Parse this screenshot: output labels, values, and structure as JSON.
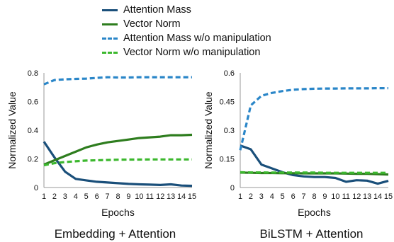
{
  "legend": [
    {
      "label": "Attention Mass",
      "color": "#1a4f7a",
      "dashed": false
    },
    {
      "label": "Vector Norm",
      "color": "#2e7d1e",
      "dashed": false
    },
    {
      "label": "Attention Mass w/o manipulation",
      "color": "#2a86c8",
      "dashed": true
    },
    {
      "label": "Vector Norm w/o manipulation",
      "color": "#3cb82e",
      "dashed": true
    }
  ],
  "chart_data": [
    {
      "type": "line",
      "title": "Embedding + Attention",
      "xlabel": "Epochs",
      "ylabel": "Normalized Value",
      "x": [
        1,
        2,
        3,
        4,
        5,
        6,
        7,
        8,
        9,
        10,
        11,
        12,
        13,
        14,
        15
      ],
      "xticks": [
        "1",
        "2",
        "3",
        "4",
        "5",
        "6",
        "7",
        "8",
        "9",
        "10",
        "11",
        "12",
        "13",
        "14",
        "15"
      ],
      "ylim": [
        0,
        0.8
      ],
      "yticks": [
        0,
        0.2,
        0.4,
        0.6,
        0.8
      ],
      "ytick_labels": [
        "0",
        "0.2",
        "0.4",
        "0.6",
        "0.8"
      ],
      "grid": false,
      "series": [
        {
          "name": "Attention Mass",
          "color": "#1a4f7a",
          "dashed": false,
          "values": [
            0.32,
            0.21,
            0.11,
            0.06,
            0.05,
            0.04,
            0.035,
            0.03,
            0.025,
            0.022,
            0.02,
            0.018,
            0.022,
            0.014,
            0.012
          ]
        },
        {
          "name": "Vector Norm",
          "color": "#2e7d1e",
          "dashed": false,
          "values": [
            0.16,
            0.19,
            0.22,
            0.25,
            0.28,
            0.3,
            0.315,
            0.325,
            0.335,
            0.345,
            0.35,
            0.355,
            0.365,
            0.365,
            0.368
          ]
        },
        {
          "name": "Attention Mass w/o manipulation",
          "color": "#2a86c8",
          "dashed": true,
          "values": [
            0.72,
            0.75,
            0.755,
            0.758,
            0.76,
            0.765,
            0.77,
            0.768,
            0.768,
            0.77,
            0.77,
            0.77,
            0.77,
            0.77,
            0.77
          ]
        },
        {
          "name": "Vector Norm w/o manipulation",
          "color": "#3cb82e",
          "dashed": true,
          "values": [
            0.155,
            0.17,
            0.178,
            0.183,
            0.188,
            0.19,
            0.192,
            0.194,
            0.195,
            0.195,
            0.196,
            0.196,
            0.196,
            0.196,
            0.196
          ]
        }
      ]
    },
    {
      "type": "line",
      "title": "BiLSTM + Attention",
      "xlabel": "Epochs",
      "ylabel": "Normalized Value",
      "x": [
        1,
        2,
        3,
        4,
        5,
        6,
        7,
        8,
        9,
        10,
        11,
        12,
        13,
        14,
        15
      ],
      "xticks": [
        "1",
        "2",
        "3",
        "4",
        "5",
        "6",
        "7",
        "8",
        "9",
        "10",
        "11",
        "12",
        "13",
        "14",
        "15"
      ],
      "ylim": [
        0,
        0.6
      ],
      "yticks": [
        0,
        0.15,
        0.3,
        0.45,
        0.6
      ],
      "ytick_labels": [
        "0",
        "0.15",
        "0.3",
        "0.45",
        "0.6"
      ],
      "grid": false,
      "series": [
        {
          "name": "Attention Mass",
          "color": "#1a4f7a",
          "dashed": false,
          "values": [
            0.22,
            0.2,
            0.12,
            0.1,
            0.08,
            0.065,
            0.058,
            0.055,
            0.055,
            0.05,
            0.03,
            0.038,
            0.036,
            0.02,
            0.035
          ]
        },
        {
          "name": "Vector Norm",
          "color": "#2e7d1e",
          "dashed": false,
          "values": [
            0.078,
            0.077,
            0.076,
            0.076,
            0.075,
            0.075,
            0.074,
            0.074,
            0.074,
            0.074,
            0.073,
            0.072,
            0.072,
            0.07,
            0.068
          ]
        },
        {
          "name": "Attention Mass w/o manipulation",
          "color": "#2a86c8",
          "dashed": true,
          "values": [
            0.195,
            0.43,
            0.48,
            0.495,
            0.505,
            0.512,
            0.515,
            0.517,
            0.518,
            0.518,
            0.519,
            0.519,
            0.519,
            0.52,
            0.52
          ]
        },
        {
          "name": "Vector Norm w/o manipulation",
          "color": "#3cb82e",
          "dashed": true,
          "values": [
            0.08,
            0.079,
            0.079,
            0.078,
            0.078,
            0.078,
            0.078,
            0.078,
            0.077,
            0.077,
            0.077,
            0.077,
            0.077,
            0.077,
            0.077
          ]
        }
      ]
    }
  ]
}
